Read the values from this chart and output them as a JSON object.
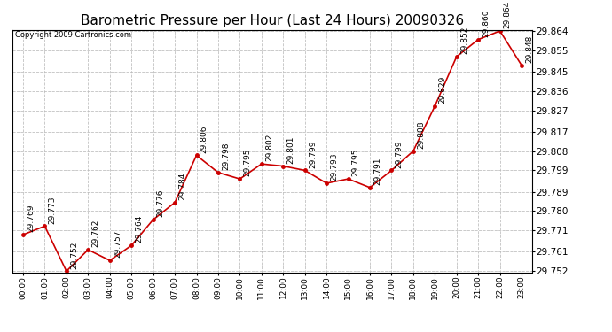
{
  "title": "Barometric Pressure per Hour (Last 24 Hours) 20090326",
  "copyright": "Copyright 2009 Cartronics.com",
  "hours": [
    "00:00",
    "01:00",
    "02:00",
    "03:00",
    "04:00",
    "05:00",
    "06:00",
    "07:00",
    "08:00",
    "09:00",
    "10:00",
    "11:00",
    "12:00",
    "13:00",
    "14:00",
    "15:00",
    "16:00",
    "17:00",
    "18:00",
    "19:00",
    "20:00",
    "21:00",
    "22:00",
    "23:00"
  ],
  "values": [
    29.769,
    29.773,
    29.752,
    29.762,
    29.757,
    29.764,
    29.776,
    29.784,
    29.806,
    29.798,
    29.795,
    29.802,
    29.801,
    29.799,
    29.793,
    29.795,
    29.791,
    29.799,
    29.808,
    29.829,
    29.852,
    29.86,
    29.864,
    29.848
  ],
  "line_color": "#cc0000",
  "marker_color": "#cc0000",
  "background_color": "#ffffff",
  "grid_color": "#bbbbbb",
  "title_fontsize": 11,
  "annotation_fontsize": 6.5,
  "copyright_fontsize": 6,
  "xlabel_fontsize": 6.5,
  "ylabel_fontsize": 7.5,
  "ylim_min": 29.752,
  "ylim_max": 29.864,
  "yticks": [
    29.752,
    29.761,
    29.771,
    29.78,
    29.789,
    29.799,
    29.808,
    29.817,
    29.827,
    29.836,
    29.845,
    29.855,
    29.864
  ]
}
